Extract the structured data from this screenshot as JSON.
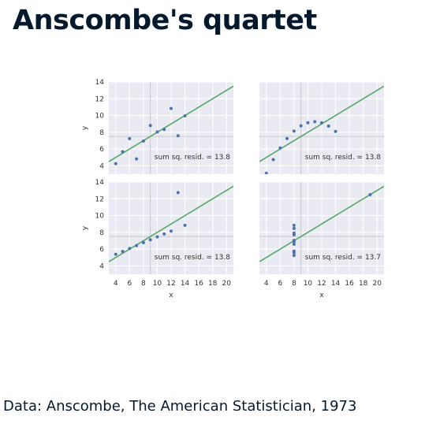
{
  "title": "Anscombe's quartet",
  "source": "Data: Anscombe, The American Statistician, 1973",
  "colors": {
    "panel_bg": "#eaeaf2",
    "grid": "#ffffff",
    "points": "#4c72b0",
    "fit_line": "#55a868",
    "ref_line": "#c8c8d0"
  },
  "chart_data": [
    {
      "type": "scatter",
      "panel": "I",
      "x": [
        10,
        8,
        13,
        9,
        11,
        14,
        6,
        4,
        12,
        7,
        5
      ],
      "y": [
        8.04,
        6.95,
        7.58,
        8.81,
        8.33,
        9.96,
        7.24,
        4.26,
        10.84,
        4.82,
        5.68
      ],
      "fit": {
        "intercept": 3.0,
        "slope": 0.5
      },
      "mean_x": 9,
      "mean_y": 7.5,
      "annotation": "sum sq. resid. = 13.8",
      "xlabel": "",
      "ylabel": "y",
      "xlim": [
        3,
        21
      ],
      "ylim": [
        3,
        14
      ],
      "xticks": [],
      "yticks": [
        "4",
        "6",
        "8",
        "10",
        "12",
        "14"
      ],
      "grid": true
    },
    {
      "type": "scatter",
      "panel": "II",
      "x": [
        10,
        8,
        13,
        9,
        11,
        14,
        6,
        4,
        12,
        7,
        5
      ],
      "y": [
        9.14,
        8.14,
        8.74,
        8.77,
        9.26,
        8.1,
        6.13,
        3.1,
        9.13,
        7.26,
        4.74
      ],
      "fit": {
        "intercept": 3.0,
        "slope": 0.5
      },
      "mean_x": 9,
      "mean_y": 7.5,
      "annotation": "sum sq. resid. = 13.8",
      "xlabel": "",
      "ylabel": "",
      "xlim": [
        3,
        21
      ],
      "ylim": [
        3,
        14
      ],
      "xticks": [],
      "yticks": [],
      "grid": true
    },
    {
      "type": "scatter",
      "panel": "III",
      "x": [
        10,
        8,
        13,
        9,
        11,
        14,
        6,
        4,
        12,
        7,
        5
      ],
      "y": [
        7.46,
        6.77,
        12.74,
        7.11,
        7.81,
        8.84,
        6.08,
        5.39,
        8.15,
        6.42,
        5.73
      ],
      "fit": {
        "intercept": 3.0,
        "slope": 0.5
      },
      "mean_x": 9,
      "mean_y": 7.5,
      "annotation": "sum sq. resid. = 13.8",
      "xlabel": "x",
      "ylabel": "y",
      "xlim": [
        3,
        21
      ],
      "ylim": [
        3,
        14
      ],
      "xticks": [
        "4",
        "6",
        "8",
        "10",
        "12",
        "14",
        "16",
        "18",
        "20"
      ],
      "yticks": [
        "4",
        "6",
        "8",
        "10",
        "12",
        "14"
      ],
      "grid": true
    },
    {
      "type": "scatter",
      "panel": "IV",
      "x": [
        8,
        8,
        8,
        8,
        8,
        8,
        8,
        19,
        8,
        8,
        8
      ],
      "y": [
        6.58,
        5.76,
        7.71,
        8.84,
        8.47,
        7.04,
        5.25,
        12.5,
        5.56,
        7.91,
        6.89
      ],
      "fit": {
        "intercept": 3.0,
        "slope": 0.5
      },
      "mean_x": 9,
      "mean_y": 7.5,
      "annotation": "sum sq. resid. = 13.7",
      "xlabel": "x",
      "ylabel": "",
      "xlim": [
        3,
        21
      ],
      "ylim": [
        3,
        14
      ],
      "xticks": [
        "4",
        "6",
        "8",
        "10",
        "12",
        "14",
        "16",
        "18",
        "20"
      ],
      "yticks": [],
      "grid": true
    }
  ]
}
